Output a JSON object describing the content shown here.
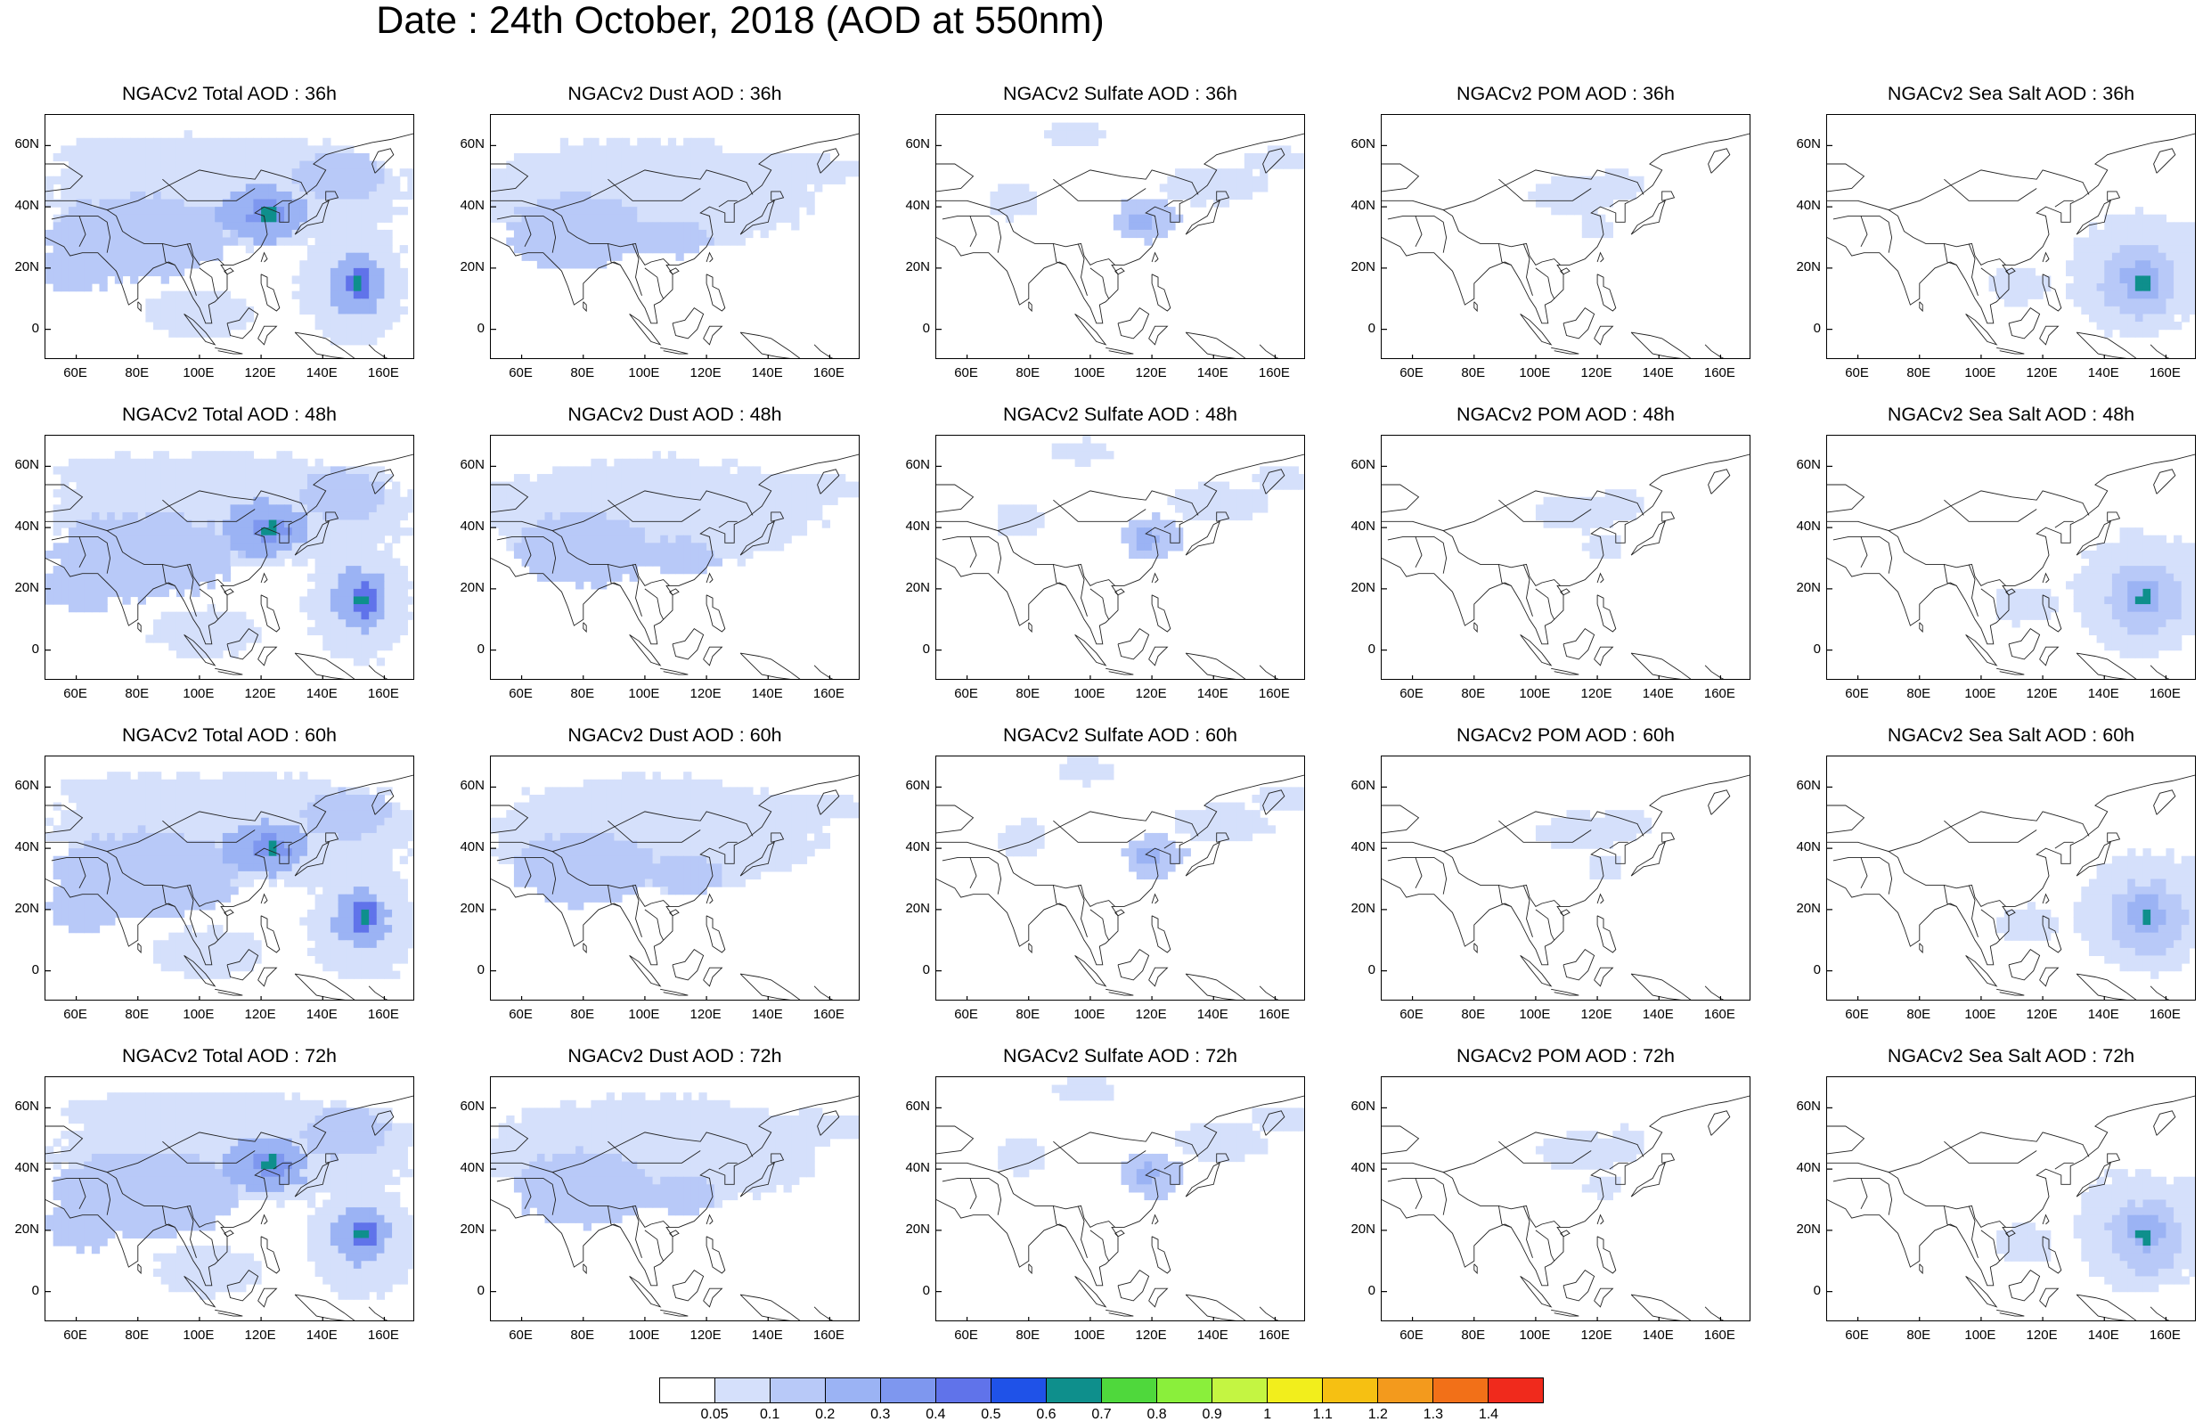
{
  "title": "Date : 24th October, 2018 (AOD at 550nm)",
  "rows": [
    {
      "hour": "36h",
      "panels": [
        {
          "id": "total",
          "title": "NGACv2 Total AOD : 36h"
        },
        {
          "id": "dust",
          "title": "NGACv2 Dust AOD : 36h"
        },
        {
          "id": "sulfate",
          "title": "NGACv2 Sulfate AOD : 36h"
        },
        {
          "id": "pom",
          "title": "NGACv2 POM AOD : 36h"
        },
        {
          "id": "seasalt",
          "title": "NGACv2 Sea Salt AOD : 36h"
        }
      ]
    },
    {
      "hour": "48h",
      "panels": [
        {
          "id": "total",
          "title": "NGACv2 Total AOD : 48h"
        },
        {
          "id": "dust",
          "title": "NGACv2 Dust AOD : 48h"
        },
        {
          "id": "sulfate",
          "title": "NGACv2 Sulfate AOD : 48h"
        },
        {
          "id": "pom",
          "title": "NGACv2 POM AOD : 48h"
        },
        {
          "id": "seasalt",
          "title": "NGACv2 Sea Salt AOD : 48h"
        }
      ]
    },
    {
      "hour": "60h",
      "panels": [
        {
          "id": "total",
          "title": "NGACv2 Total AOD : 60h"
        },
        {
          "id": "dust",
          "title": "NGACv2 Dust AOD : 60h"
        },
        {
          "id": "sulfate",
          "title": "NGACv2 Sulfate AOD : 60h"
        },
        {
          "id": "pom",
          "title": "NGACv2 POM AOD : 60h"
        },
        {
          "id": "seasalt",
          "title": "NGACv2 Sea Salt AOD : 60h"
        }
      ]
    },
    {
      "hour": "72h",
      "panels": [
        {
          "id": "total",
          "title": "NGACv2 Total AOD : 72h"
        },
        {
          "id": "dust",
          "title": "NGACv2 Dust AOD : 72h"
        },
        {
          "id": "sulfate",
          "title": "NGACv2 Sulfate AOD : 72h"
        },
        {
          "id": "pom",
          "title": "NGACv2 POM AOD : 72h"
        },
        {
          "id": "seasalt",
          "title": "NGACv2 Sea Salt  AOD : 72h"
        }
      ]
    }
  ],
  "lat_labels": [
    "60N",
    "40N",
    "20N",
    "0"
  ],
  "lon_labels": [
    "60E",
    "80E",
    "100E",
    "120E",
    "140E",
    "160E"
  ],
  "colorbar": {
    "labels": [
      "0.05",
      "0.1",
      "0.2",
      "0.3",
      "0.4",
      "0.5",
      "0.6",
      "0.7",
      "0.8",
      "0.9",
      "1",
      "1.1",
      "1.2",
      "1.3",
      "1.4"
    ],
    "colors": [
      "#ffffff",
      "#d5e0fb",
      "#b8c9f8",
      "#9bb3f4",
      "#7e97ef",
      "#6073ea",
      "#1f52e8",
      "#0e8f8c",
      "#4fd83c",
      "#8aef3b",
      "#c4f542",
      "#f2ee1c",
      "#f6c012",
      "#f39a1d",
      "#f27018",
      "#f02a1c"
    ]
  }
}
